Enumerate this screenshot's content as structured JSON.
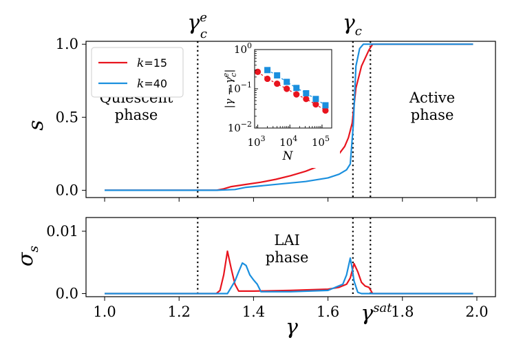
{
  "chart_data": [
    {
      "type": "line",
      "panel": "top",
      "ylabel": "s",
      "xlim": [
        0.95,
        2.05
      ],
      "ylim": [
        -0.05,
        1.02
      ],
      "xticks": [
        1.0,
        1.2,
        1.4,
        1.6,
        1.8,
        2.0
      ],
      "yticks": [
        0.0,
        0.5,
        1.0
      ],
      "ytick_labels": [
        "0.0",
        "0.5",
        "1.0"
      ],
      "legend": {
        "position": "top-left",
        "entries": [
          {
            "label": "k=15",
            "k": "k",
            "eq": "=15",
            "color": "#e8141e"
          },
          {
            "label": "k=40",
            "k": "k",
            "eq": "=40",
            "color": "#1a8fde"
          }
        ]
      },
      "series": [
        {
          "name": "k=15",
          "color": "#e8141e",
          "x": [
            1.0,
            1.1,
            1.2,
            1.3,
            1.32,
            1.34,
            1.38,
            1.42,
            1.46,
            1.5,
            1.54,
            1.58,
            1.61,
            1.63,
            1.645,
            1.655,
            1.665,
            1.675,
            1.69,
            1.71,
            1.72,
            1.8,
            1.9,
            1.99
          ],
          "y": [
            0.0,
            0.0,
            0.0,
            0.0,
            0.01,
            0.025,
            0.04,
            0.055,
            0.075,
            0.1,
            0.13,
            0.17,
            0.21,
            0.25,
            0.3,
            0.36,
            0.46,
            0.7,
            0.85,
            0.96,
            1.0,
            1.0,
            1.0,
            1.0
          ]
        },
        {
          "name": "k=40",
          "color": "#1a8fde",
          "x": [
            1.0,
            1.1,
            1.2,
            1.3,
            1.35,
            1.38,
            1.42,
            1.48,
            1.54,
            1.6,
            1.63,
            1.65,
            1.66,
            1.668,
            1.675,
            1.685,
            1.695,
            1.7,
            1.8,
            1.9,
            1.99
          ],
          "y": [
            0.0,
            0.0,
            0.0,
            0.0,
            0.005,
            0.02,
            0.03,
            0.045,
            0.06,
            0.085,
            0.11,
            0.14,
            0.18,
            0.45,
            0.85,
            0.97,
            1.0,
            1.0,
            1.0,
            1.0,
            1.0
          ]
        }
      ],
      "vlines": [
        {
          "x": 1.25,
          "label": "γ",
          "sub": "c",
          "sup": "e"
        },
        {
          "x": 1.667,
          "label": "γ",
          "sub": "c",
          "sup": ""
        },
        {
          "x": 1.714,
          "label": "",
          "sub": "",
          "sup": ""
        }
      ],
      "annotations": [
        {
          "lines": [
            "Quiescent",
            "phase"
          ],
          "x": 1.085,
          "y": 0.6
        },
        {
          "lines": [
            "Active",
            "phase"
          ],
          "x": 1.88,
          "y": 0.6
        }
      ]
    },
    {
      "type": "scatter",
      "panel": "inset",
      "xlabel": "N",
      "ylabel": "|γ − γ",
      "ylabel_sub": "c",
      "ylabel_sup": "e",
      "ylabel_end": "|",
      "xscale": "log",
      "yscale": "log",
      "xlim": [
        800,
        200000
      ],
      "ylim": [
        0.01,
        1.0
      ],
      "xticks": [
        {
          "value": 1000,
          "base": "10",
          "exp": "3"
        },
        {
          "value": 10000,
          "base": "10",
          "exp": "4"
        },
        {
          "value": 100000,
          "base": "10",
          "exp": "5"
        }
      ],
      "yticks": [
        {
          "value": 0.01,
          "base": "10",
          "exp": "−2"
        },
        {
          "value": 0.1,
          "base": "10",
          "exp": "−1"
        },
        {
          "value": 1,
          "base": "10",
          "exp": "0"
        }
      ],
      "series": [
        {
          "name": "k=15",
          "color": "#e8141e",
          "marker": "circle",
          "x": [
            1000,
            2000,
            4000,
            8000,
            16000,
            32000,
            64000,
            128000
          ],
          "y": [
            0.27,
            0.18,
            0.135,
            0.1,
            0.072,
            0.055,
            0.04,
            0.028
          ]
        },
        {
          "name": "k=40",
          "color": "#1a8fde",
          "marker": "square",
          "x": [
            2000,
            4000,
            8000,
            16000,
            32000,
            64000,
            128000
          ],
          "y": [
            0.3,
            0.22,
            0.15,
            0.105,
            0.077,
            0.055,
            0.038
          ]
        }
      ]
    },
    {
      "type": "line",
      "panel": "bottom",
      "xlabel": "γ",
      "ylabel": "σ",
      "ylabel_sub": "s",
      "xlim": [
        0.95,
        2.05
      ],
      "ylim": [
        -0.0005,
        0.0122
      ],
      "xticks": [
        1.0,
        1.2,
        1.4,
        1.6,
        1.8,
        2.0
      ],
      "xtick_labels": [
        "1.0",
        "1.2",
        "1.4",
        "1.6",
        "1.8",
        "2.0"
      ],
      "yticks": [
        0.0,
        0.01
      ],
      "ytick_labels": [
        "0.0",
        "0.01"
      ],
      "series": [
        {
          "name": "k=15",
          "color": "#e8141e",
          "x": [
            1.0,
            1.2,
            1.3,
            1.31,
            1.32,
            1.33,
            1.34,
            1.35,
            1.36,
            1.4,
            1.5,
            1.6,
            1.63,
            1.65,
            1.66,
            1.67,
            1.68,
            1.69,
            1.7,
            1.71,
            1.72,
            1.8,
            1.99
          ],
          "y": [
            0.0,
            0.0,
            0.0,
            0.0005,
            0.003,
            0.0068,
            0.004,
            0.0015,
            0.0004,
            0.0004,
            0.0005,
            0.0007,
            0.001,
            0.0015,
            0.0025,
            0.0048,
            0.0035,
            0.0018,
            0.0012,
            0.001,
            0.0,
            0.0,
            0.0
          ]
        },
        {
          "name": "k=40",
          "color": "#1a8fde",
          "x": [
            1.0,
            1.2,
            1.33,
            1.35,
            1.36,
            1.37,
            1.38,
            1.39,
            1.4,
            1.41,
            1.42,
            1.5,
            1.6,
            1.64,
            1.65,
            1.66,
            1.665,
            1.67,
            1.68,
            1.69,
            1.7,
            1.8,
            1.99
          ],
          "y": [
            0.0,
            0.0,
            0.0,
            0.002,
            0.0035,
            0.0049,
            0.0045,
            0.003,
            0.0022,
            0.0015,
            0.0003,
            0.0003,
            0.0005,
            0.0015,
            0.003,
            0.0057,
            0.004,
            0.002,
            0.0002,
            0.0,
            0.0,
            0.0,
            0.0
          ]
        }
      ],
      "vlines": [
        {
          "x": 1.25,
          "label": "",
          "sub": "",
          "sup": ""
        },
        {
          "x": 1.667,
          "label": "",
          "sub": "",
          "sup": ""
        },
        {
          "x": 1.714,
          "label": "γ",
          "sub": "",
          "sup": "sat"
        }
      ],
      "annotations": [
        {
          "lines": [
            "LAI",
            "phase"
          ],
          "x": 1.49,
          "y": 0.0078
        }
      ]
    }
  ]
}
